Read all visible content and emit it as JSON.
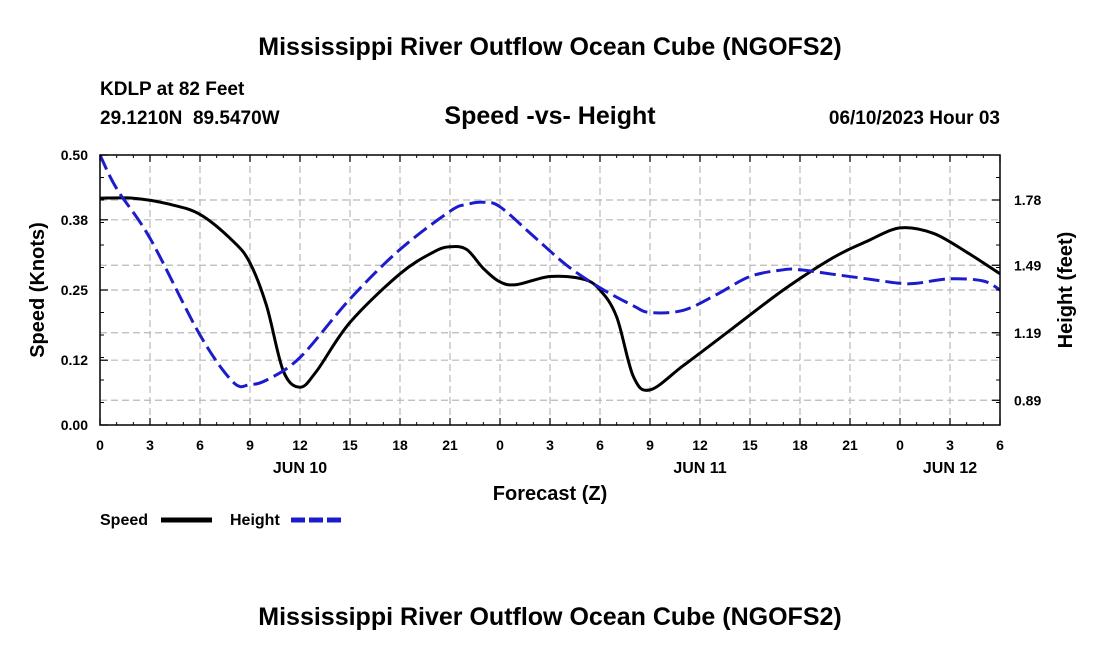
{
  "page": {
    "title": "Mississippi River Outflow Ocean Cube (NGOFS2)",
    "station": "KDLP at 82 Feet",
    "coords": "29.1210N  89.5470W",
    "subtitle": "Speed -vs- Height",
    "datetime": "06/10/2023 Hour 03",
    "footer_title": "Mississippi River Outflow Ocean Cube (NGOFS2)"
  },
  "chart_data": {
    "type": "line",
    "title": "Speed -vs- Height",
    "xlabel": "Forecast (Z)",
    "ylabel": "Speed (Knots)",
    "y2label": "Height (feet)",
    "x_range": [
      0,
      54
    ],
    "x_ticks": [
      0,
      3,
      6,
      9,
      12,
      15,
      18,
      21,
      24,
      27,
      30,
      33,
      36,
      39,
      42,
      45,
      48,
      51,
      54
    ],
    "x_tick_labels": [
      "0",
      "3",
      "6",
      "9",
      "12",
      "15",
      "18",
      "21",
      "0",
      "3",
      "6",
      "9",
      "12",
      "15",
      "18",
      "21",
      "0",
      "3",
      "6"
    ],
    "day_labels": [
      {
        "x": 12,
        "label": "JUN 10"
      },
      {
        "x": 36,
        "label": "JUN 11"
      },
      {
        "x": 51,
        "label": "JUN 12"
      }
    ],
    "ylim": [
      0,
      0.5
    ],
    "y_ticks": [
      0,
      0.12,
      0.25,
      0.38,
      0.5
    ],
    "y_tick_labels": [
      "0.00",
      "0.12",
      "0.25",
      "0.38",
      "0.50"
    ],
    "y2lim": [
      0.78,
      1.98
    ],
    "y2_ticks": [
      0.89,
      1.19,
      1.49,
      1.78
    ],
    "y2_tick_labels": [
      "0.89",
      "1.19",
      "1.49",
      "1.78"
    ],
    "legend": [
      "Speed",
      "Height"
    ],
    "series": [
      {
        "name": "Speed",
        "axis": "left",
        "color": "#000000",
        "dash": "solid",
        "x": [
          0,
          2,
          4,
          6,
          8,
          9,
          10,
          11,
          12,
          13,
          15,
          18,
          20,
          21,
          22,
          23,
          24,
          25,
          27,
          29,
          30,
          31,
          32,
          33,
          35,
          38,
          41,
          44,
          46,
          48,
          50,
          52,
          54
        ],
        "y": [
          0.42,
          0.42,
          0.41,
          0.39,
          0.34,
          0.3,
          0.22,
          0.1,
          0.07,
          0.1,
          0.19,
          0.28,
          0.32,
          0.33,
          0.325,
          0.29,
          0.265,
          0.26,
          0.275,
          0.27,
          0.25,
          0.2,
          0.09,
          0.065,
          0.11,
          0.18,
          0.25,
          0.31,
          0.34,
          0.365,
          0.355,
          0.32,
          0.28
        ]
      },
      {
        "name": "Height",
        "axis": "right",
        "color": "#1c1ccc",
        "dash": "dashed",
        "x": [
          0,
          1,
          3,
          6,
          8,
          9,
          10,
          12,
          15,
          18,
          21,
          22,
          23,
          24,
          26,
          28,
          30,
          32,
          33,
          35,
          37,
          39,
          41,
          42,
          44,
          46,
          48,
          49,
          51,
          53,
          54
        ],
        "y": [
          1.98,
          1.83,
          1.61,
          1.18,
          0.97,
          0.96,
          0.98,
          1.08,
          1.34,
          1.56,
          1.73,
          1.76,
          1.77,
          1.75,
          1.62,
          1.49,
          1.39,
          1.31,
          1.28,
          1.29,
          1.36,
          1.44,
          1.47,
          1.47,
          1.45,
          1.43,
          1.41,
          1.41,
          1.43,
          1.42,
          1.38
        ]
      }
    ]
  }
}
